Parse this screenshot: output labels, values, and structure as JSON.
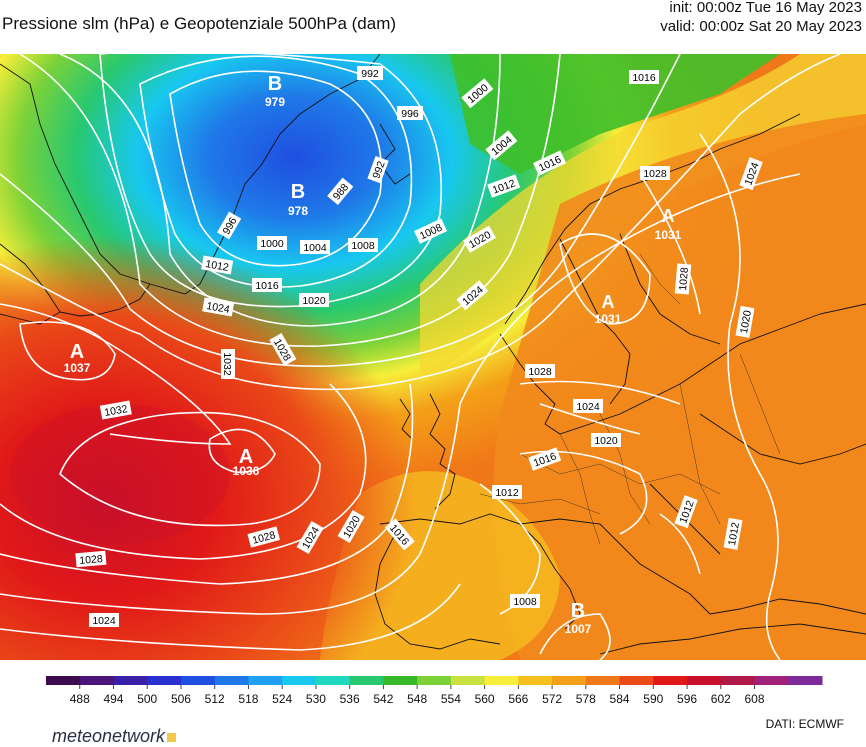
{
  "header": {
    "title": "Pressione slm (hPa) e Geopotenziale 500hPa (dam)",
    "init": "init: 00:00z Tue 16 May 2023",
    "valid": "valid: 00:00z Sat 20 May 2023"
  },
  "map": {
    "isobar_labels": [
      "992",
      "996",
      "1000",
      "1004",
      "1008",
      "1012",
      "1016",
      "1020",
      "1024",
      "1028",
      "1032",
      "1008",
      "1004",
      "1000",
      "996",
      "992",
      "988",
      "1012",
      "1016",
      "1020",
      "1024",
      "1028",
      "1032",
      "1028",
      "1024",
      "1020",
      "1016",
      "1012",
      "1008",
      "1016",
      "1020",
      "1024",
      "1028",
      "1028",
      "1024",
      "1020",
      "1016",
      "1012",
      "1012",
      "1028",
      "1024"
    ],
    "pressure_centers": [
      {
        "letter": "B",
        "value": "979"
      },
      {
        "letter": "B",
        "value": "978"
      },
      {
        "letter": "A",
        "value": "1037"
      },
      {
        "letter": "A",
        "value": "1036"
      },
      {
        "letter": "A",
        "value": "1031"
      },
      {
        "letter": "A",
        "value": "1031"
      },
      {
        "letter": "B",
        "value": "1007"
      }
    ]
  },
  "colorbar": {
    "tick_labels": [
      "488",
      "494",
      "500",
      "506",
      "512",
      "518",
      "524",
      "530",
      "536",
      "542",
      "548",
      "554",
      "560",
      "566",
      "572",
      "578",
      "584",
      "590",
      "596",
      "602",
      "608"
    ],
    "colors": [
      "#3b0a4f",
      "#4a1478",
      "#3a1fa8",
      "#2a2fd0",
      "#1f4fe0",
      "#1f78e8",
      "#1fa0f0",
      "#18c8f0",
      "#20d8c0",
      "#28c870",
      "#38b828",
      "#7cd238",
      "#c8e040",
      "#f6ee3a",
      "#f5c020",
      "#f4a018",
      "#f07818",
      "#ea4a18",
      "#e01818",
      "#c8102a",
      "#b01848",
      "#a0207a",
      "#7e2a9a"
    ]
  },
  "footer": {
    "source": "DATI:  ECMWF",
    "logo": "meteonetwork"
  }
}
